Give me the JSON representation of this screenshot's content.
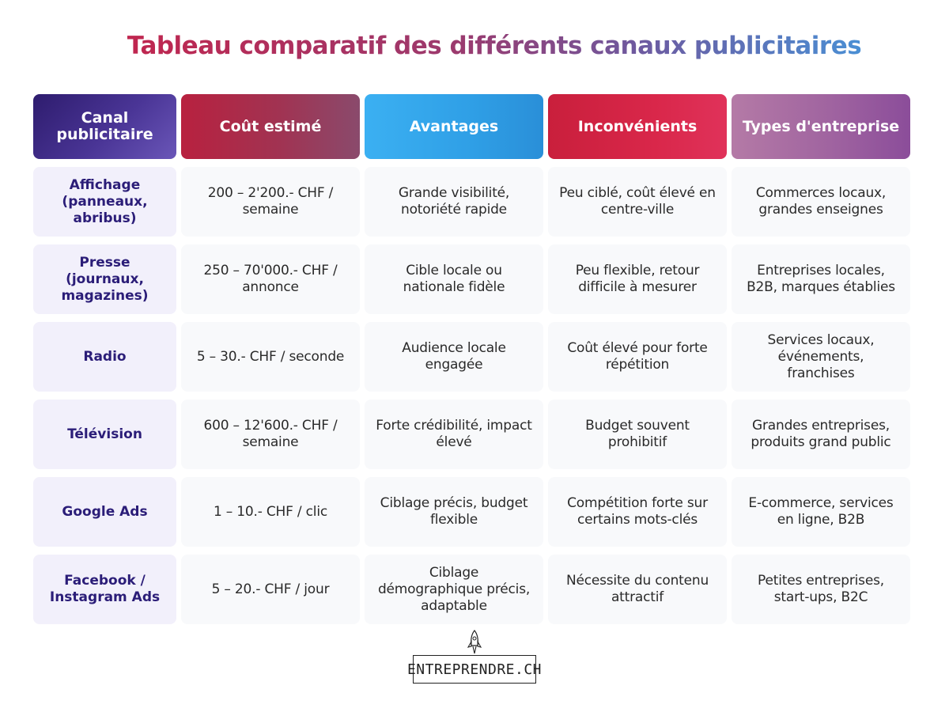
{
  "title": "Tableau comparatif des différents canaux publicitaires",
  "headers": [
    "Canal publicitaire",
    "Coût estimé",
    "Avantages",
    "Inconvénients",
    "Types d'entreprise"
  ],
  "rows": [
    {
      "canal": "Affichage (panneaux, abribus)",
      "cout": "200 – 2'200.- CHF / semaine",
      "avantages": "Grande visibilité, notoriété rapide",
      "inconvenients": "Peu ciblé, coût élevé en centre-ville",
      "types": "Commerces locaux, grandes enseignes"
    },
    {
      "canal": "Presse (journaux, magazines)",
      "cout": "250 – 70'000.- CHF / annonce",
      "avantages": "Cible locale ou nationale fidèle",
      "inconvenients": "Peu flexible, retour difficile à mesurer",
      "types": "Entreprises locales, B2B, marques établies"
    },
    {
      "canal": "Radio",
      "cout": "5 – 30.- CHF / seconde",
      "avantages": "Audience locale engagée",
      "inconvenients": "Coût élevé pour forte répétition",
      "types": "Services locaux, événements, franchises"
    },
    {
      "canal": "Télévision",
      "cout": "600 – 12'600.- CHF / semaine",
      "avantages": "Forte crédibilité, impact élevé",
      "inconvenients": "Budget souvent prohibitif",
      "types": "Grandes entreprises, produits grand public"
    },
    {
      "canal": "Google Ads",
      "cout": "1 – 10.- CHF / clic",
      "avantages": "Ciblage précis, budget flexible",
      "inconvenients": "Compétition forte sur certains mots-clés",
      "types": "E-commerce, services en ligne, B2B"
    },
    {
      "canal": "Facebook / Instagram Ads",
      "cout": "5 – 20.- CHF / jour",
      "avantages": "Ciblage démographique précis, adaptable",
      "inconvenients": "Nécessite du contenu attractif",
      "types": "Petites entreprises, start-ups, B2C"
    }
  ],
  "logo": {
    "text": "ENTREPRENDRE.CH",
    "icon": "rocket-icon"
  }
}
